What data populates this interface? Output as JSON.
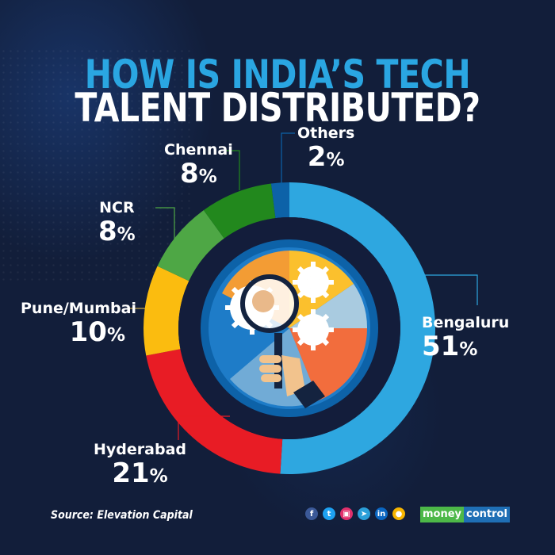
{
  "title": {
    "line1": "HOW IS INDIA’S TECH",
    "line2": "TALENT DISTRIBUTED?"
  },
  "chart_data": {
    "type": "pie",
    "subtype": "donut",
    "title": "How is India’s tech talent distributed?",
    "categories": [
      "Bengaluru",
      "Hyderabad",
      "Pune/Mumbai",
      "NCR",
      "Chennai",
      "Others"
    ],
    "values": [
      51,
      21,
      10,
      8,
      8,
      2
    ],
    "unit": "%",
    "colors": [
      "#2ea7e0",
      "#e81c25",
      "#fbbc0f",
      "#4ea745",
      "#22881d",
      "#0d62a8"
    ],
    "start_angle": "12 o'clock",
    "direction": "clockwise",
    "legend": "none (direct labels with connector lines)"
  },
  "labels": [
    {
      "name": "Bengaluru",
      "value": "51",
      "pct": "%"
    },
    {
      "name": "Hyderabad",
      "value": "21",
      "pct": "%"
    },
    {
      "name": "Pune/Mumbai",
      "value": "10",
      "pct": "%"
    },
    {
      "name": "NCR",
      "value": "8",
      "pct": "%"
    },
    {
      "name": "Chennai",
      "value": "8",
      "pct": "%"
    },
    {
      "name": "Others",
      "value": "2",
      "pct": "%"
    }
  ],
  "footer": {
    "source": "Source: Elevation Capital",
    "social": [
      {
        "icon": "facebook-icon",
        "glyph": "f",
        "color": "#3b5998"
      },
      {
        "icon": "twitter-icon",
        "glyph": "t",
        "color": "#1da1f2"
      },
      {
        "icon": "instagram-icon",
        "glyph": "▣",
        "color": "#e1306c"
      },
      {
        "icon": "telegram-icon",
        "glyph": "➤",
        "color": "#2b9fd9"
      },
      {
        "icon": "linkedin-icon",
        "glyph": "in",
        "color": "#0a66c2"
      },
      {
        "icon": "koo-icon",
        "glyph": "●",
        "color": "#f7b500"
      }
    ],
    "brand_part1": "money",
    "brand_part2": "control"
  }
}
